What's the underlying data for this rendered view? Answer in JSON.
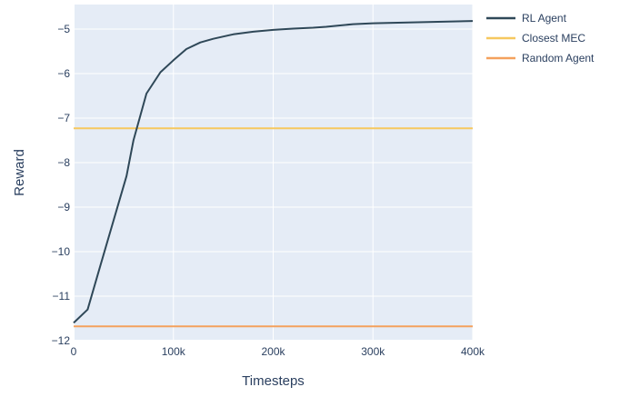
{
  "chart_data": {
    "type": "line",
    "title": "",
    "xlabel": "Timesteps",
    "ylabel": "Reward",
    "xlim": [
      0,
      400000
    ],
    "ylim": [
      -12,
      -4.45
    ],
    "x_ticks": [
      0,
      100000,
      200000,
      300000,
      400000
    ],
    "x_tick_labels": [
      "0",
      "100k",
      "200k",
      "300k",
      "400k"
    ],
    "y_ticks": [
      -12,
      -11,
      -10,
      -9,
      -8,
      -7,
      -6,
      -5
    ],
    "y_tick_labels": [
      "−12",
      "−11",
      "−10",
      "−9",
      "−8",
      "−7",
      "−6",
      "−5"
    ],
    "grid": true,
    "legend_position": "top-right-outside",
    "colors": {
      "plot_bg": "#e5ecf6",
      "grid": "#ffffff",
      "axis_text": "#2a3f5f"
    },
    "series": [
      {
        "name": "RL Agent",
        "color": "#2f4858",
        "x": [
          0,
          14000,
          27000,
          40000,
          53000,
          60000,
          73000,
          87000,
          100000,
          113000,
          127000,
          140000,
          160000,
          180000,
          200000,
          220000,
          240000,
          253000,
          267000,
          280000,
          300000,
          320000,
          340000,
          360000,
          380000,
          400000
        ],
        "y": [
          -11.6,
          -11.3,
          -10.3,
          -9.3,
          -8.3,
          -7.5,
          -6.45,
          -5.97,
          -5.7,
          -5.45,
          -5.3,
          -5.22,
          -5.12,
          -5.06,
          -5.02,
          -4.99,
          -4.97,
          -4.95,
          -4.92,
          -4.89,
          -4.87,
          -4.86,
          -4.85,
          -4.84,
          -4.83,
          -4.82
        ]
      },
      {
        "name": "Closest MEC",
        "color": "#f6c85f",
        "x": [
          0,
          400000
        ],
        "y": [
          -7.23,
          -7.23
        ]
      },
      {
        "name": "Random Agent",
        "color": "#f4a15d",
        "x": [
          0,
          400000
        ],
        "y": [
          -11.68,
          -11.68
        ]
      }
    ]
  }
}
